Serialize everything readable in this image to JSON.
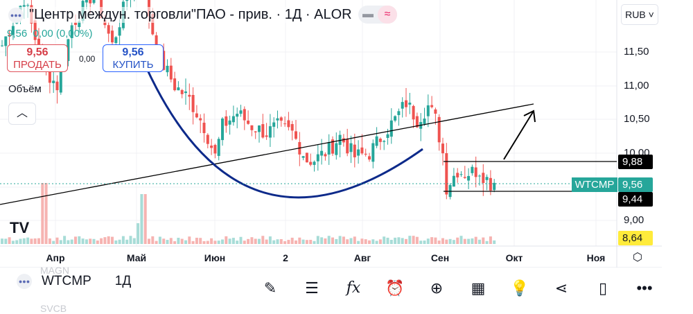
{
  "header": {
    "title": "\"Центр междун. торговли\"ПАО - прив. · 1Д · ALOR",
    "last": "9,56",
    "change": "0,00",
    "change_pct": "(0,00%)"
  },
  "trade": {
    "sell_price": "9,56",
    "sell_label": "ПРОДАТЬ",
    "spread": "0,00",
    "buy_price": "9,56",
    "buy_label": "КУПИТЬ"
  },
  "volume_label": "Объём",
  "currency": "RUB",
  "price_axis": [
    "11,50",
    "11,00",
    "10,50",
    "10,00",
    "9,00"
  ],
  "tags": {
    "upper": "9,88",
    "symbol": "WTCMP",
    "last": "9,56",
    "lower": "9,44",
    "low": "8,64"
  },
  "time_axis": [
    "Апр",
    "Май",
    "Июн",
    "2",
    "Авг",
    "Сен",
    "Окт",
    "Ноя"
  ],
  "bottom": {
    "ticker": "WTCMP",
    "interval": "1Д",
    "ghost_above": "MAGN",
    "ghost_below": "SVCB"
  },
  "colors": {
    "up": "#26a69a",
    "down": "#ef5350",
    "curve": "#0d2a8a"
  },
  "chart_data": {
    "type": "candlestick",
    "note": "approximate close path, [trading day index, price]",
    "path": [
      [
        0,
        11.6
      ],
      [
        6,
        12.3
      ],
      [
        11,
        11.3
      ],
      [
        15,
        11.0
      ],
      [
        19,
        11.9
      ],
      [
        25,
        12.4
      ],
      [
        30,
        11.6
      ],
      [
        34,
        12.3
      ],
      [
        38,
        12.6
      ],
      [
        41,
        11.8
      ],
      [
        43,
        11.4
      ],
      [
        47,
        11.0
      ],
      [
        51,
        10.8
      ],
      [
        55,
        10.4
      ],
      [
        58,
        9.95
      ],
      [
        60,
        10.4
      ],
      [
        64,
        10.6
      ],
      [
        68,
        10.4
      ],
      [
        72,
        10.3
      ],
      [
        75,
        10.4
      ],
      [
        79,
        10.3
      ],
      [
        83,
        9.9
      ],
      [
        85,
        9.9
      ],
      [
        89,
        10.05
      ],
      [
        92,
        10.25
      ],
      [
        96,
        9.95
      ],
      [
        100,
        10.0
      ],
      [
        104,
        10.3
      ],
      [
        107,
        10.5
      ],
      [
        110,
        10.75
      ],
      [
        113,
        10.5
      ],
      [
        116,
        10.7
      ],
      [
        118,
        10.5
      ],
      [
        120,
        10.0
      ],
      [
        121,
        9.5
      ],
      [
        124,
        9.75
      ],
      [
        126,
        9.7
      ],
      [
        130,
        9.75
      ],
      [
        133,
        9.55
      ],
      [
        134,
        9.56
      ]
    ]
  }
}
